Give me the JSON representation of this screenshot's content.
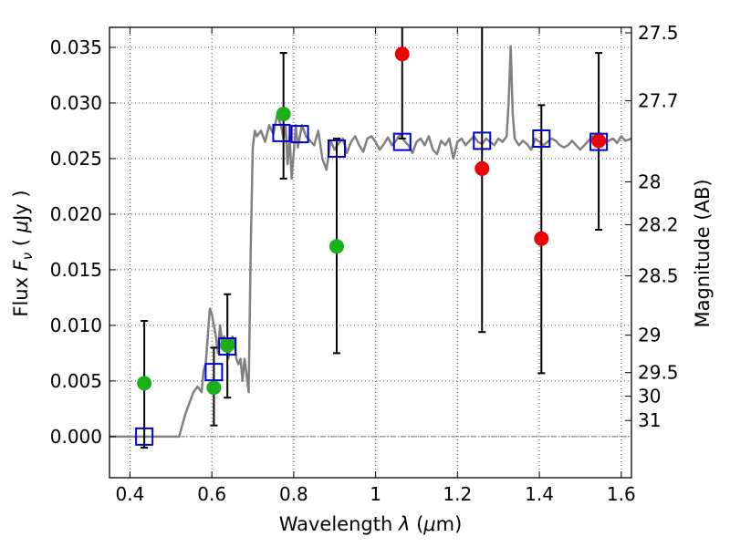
{
  "chart_data": {
    "type": "scatter",
    "title": "",
    "xlabel": "Wavelength  λ (μm)",
    "ylabel": "Flux  Fν  ( μJy )",
    "ylabel_parts": {
      "pre": "Flux ",
      "f": "F",
      "sub": "ν",
      "post": "  ( ",
      "mu": "μ",
      "unit": "Jy )"
    },
    "xlabel_parts": {
      "pre": "Wavelength  ",
      "lambda": "λ",
      "mid": " (",
      "mu": "μ",
      "post": "m)"
    },
    "y2label": "Magnitude (AB)",
    "xlim": [
      0.35,
      1.625
    ],
    "ylim": [
      -0.0037,
      0.0368
    ],
    "grid": true,
    "colors": {
      "spectrum": "#808080",
      "green_points": "#1ab01a",
      "red_points": "#ee0000",
      "model_boxes": "#0000cc",
      "errorbars": "#000000",
      "zero_line": "#777777"
    },
    "x_ticks": [
      {
        "value": 0.4,
        "label": "0.4"
      },
      {
        "value": 0.6,
        "label": "0.6"
      },
      {
        "value": 0.8,
        "label": "0.8"
      },
      {
        "value": 1.0,
        "label": "1"
      },
      {
        "value": 1.2,
        "label": "1.2"
      },
      {
        "value": 1.4,
        "label": "1.4"
      },
      {
        "value": 1.6,
        "label": "1.6"
      }
    ],
    "y_ticks": [
      {
        "value": 0.0,
        "label": "0.000"
      },
      {
        "value": 0.005,
        "label": "0.005"
      },
      {
        "value": 0.01,
        "label": "0.010"
      },
      {
        "value": 0.015,
        "label": "0.015"
      },
      {
        "value": 0.02,
        "label": "0.020"
      },
      {
        "value": 0.025,
        "label": "0.025"
      },
      {
        "value": 0.03,
        "label": "0.030"
      },
      {
        "value": 0.035,
        "label": "0.035"
      }
    ],
    "y2_ticks": [
      {
        "value": 27.5,
        "label": "27.5"
      },
      {
        "value": 27.7,
        "label": "27.7"
      },
      {
        "value": 28.0,
        "label": "28"
      },
      {
        "value": 28.2,
        "label": "28.2"
      },
      {
        "value": 28.5,
        "label": "28.5"
      },
      {
        "value": 29.0,
        "label": "29"
      },
      {
        "value": 29.5,
        "label": "29.5"
      },
      {
        "value": 30.0,
        "label": "30"
      },
      {
        "value": 31.0,
        "label": "31"
      }
    ],
    "series": [
      {
        "kind": "spectrum",
        "x": [
          0.35,
          0.42,
          0.52,
          0.535,
          0.545,
          0.555,
          0.565,
          0.575,
          0.58,
          0.585,
          0.59,
          0.595,
          0.6,
          0.605,
          0.61,
          0.615,
          0.62,
          0.625,
          0.63,
          0.635,
          0.64,
          0.645,
          0.65,
          0.655,
          0.66,
          0.665,
          0.67,
          0.675,
          0.68,
          0.685,
          0.69,
          0.695,
          0.7,
          0.705,
          0.71,
          0.72,
          0.73,
          0.74,
          0.75,
          0.76,
          0.77,
          0.775,
          0.78,
          0.785,
          0.79,
          0.795,
          0.8,
          0.805,
          0.81,
          0.815,
          0.82,
          0.83,
          0.84,
          0.85,
          0.86,
          0.87,
          0.88,
          0.89,
          0.9,
          0.91,
          0.92,
          0.93,
          0.94,
          0.95,
          0.96,
          0.97,
          0.98,
          0.99,
          1.0,
          1.01,
          1.02,
          1.03,
          1.04,
          1.05,
          1.06,
          1.07,
          1.08,
          1.09,
          1.1,
          1.11,
          1.12,
          1.13,
          1.14,
          1.15,
          1.16,
          1.17,
          1.18,
          1.19,
          1.2,
          1.21,
          1.22,
          1.23,
          1.24,
          1.25,
          1.26,
          1.27,
          1.28,
          1.29,
          1.3,
          1.31,
          1.32,
          1.325,
          1.33,
          1.335,
          1.34,
          1.35,
          1.36,
          1.37,
          1.38,
          1.39,
          1.4,
          1.41,
          1.42,
          1.43,
          1.44,
          1.45,
          1.46,
          1.47,
          1.48,
          1.49,
          1.5,
          1.51,
          1.52,
          1.53,
          1.54,
          1.55,
          1.56,
          1.57,
          1.58,
          1.59,
          1.6,
          1.61,
          1.625
        ],
        "y": [
          0.0,
          0.0,
          0.0,
          0.002,
          0.003,
          0.004,
          0.0045,
          0.004,
          0.006,
          0.0065,
          0.009,
          0.0115,
          0.011,
          0.01,
          0.009,
          0.0075,
          0.01,
          0.0085,
          0.009,
          0.008,
          0.007,
          0.008,
          0.009,
          0.0085,
          0.007,
          0.0065,
          0.007,
          0.005,
          0.007,
          0.0055,
          0.004,
          0.017,
          0.026,
          0.0275,
          0.027,
          0.0275,
          0.0265,
          0.028,
          0.0272,
          0.029,
          0.0278,
          0.0268,
          0.028,
          0.0245,
          0.027,
          0.0232,
          0.0255,
          0.028,
          0.026,
          0.027,
          0.028,
          0.027,
          0.0266,
          0.0262,
          0.0275,
          0.025,
          0.024,
          0.0266,
          0.0258,
          0.0264,
          0.0268,
          0.0255,
          0.0265,
          0.027,
          0.0262,
          0.0256,
          0.0268,
          0.027,
          0.0265,
          0.0258,
          0.0263,
          0.0269,
          0.0262,
          0.0266,
          0.0272,
          0.0266,
          0.0262,
          0.0255,
          0.0265,
          0.0268,
          0.0262,
          0.027,
          0.0258,
          0.0254,
          0.0266,
          0.0262,
          0.0268,
          0.025,
          0.0265,
          0.0268,
          0.0262,
          0.0266,
          0.027,
          0.0265,
          0.0263,
          0.0268,
          0.0265,
          0.0262,
          0.0268,
          0.0265,
          0.027,
          0.03,
          0.0351,
          0.029,
          0.0268,
          0.0262,
          0.0266,
          0.0263,
          0.0258,
          0.0268,
          0.0265,
          0.0262,
          0.0265,
          0.0268,
          0.0266,
          0.0262,
          0.026,
          0.0262,
          0.0266,
          0.0262,
          0.0258,
          0.0262,
          0.0266,
          0.027,
          0.0266,
          0.0268,
          0.0264,
          0.0266,
          0.0268,
          0.0264,
          0.027,
          0.0266,
          0.0268
        ]
      },
      {
        "kind": "errorbar",
        "x": [
          0.435,
          0.605,
          0.638,
          0.775,
          0.905,
          1.065,
          1.26,
          1.405,
          1.545
        ],
        "ylow": [
          -0.001,
          0.001,
          0.0035,
          0.0232,
          0.0075,
          0.0268,
          0.0094,
          0.0057,
          0.0186
        ],
        "yhigh": [
          0.0104,
          0.008,
          0.0128,
          0.0345,
          0.0268,
          0.0368,
          0.0368,
          0.0298,
          0.0345
        ]
      },
      {
        "kind": "green_points",
        "x": [
          0.435,
          0.605,
          0.638,
          0.775,
          0.905
        ],
        "y": [
          0.0048,
          0.0044,
          0.0082,
          0.029,
          0.0171
        ]
      },
      {
        "kind": "red_points",
        "x": [
          1.065,
          1.26,
          1.405,
          1.545
        ],
        "y": [
          0.0344,
          0.0241,
          0.0178,
          0.0266
        ]
      },
      {
        "kind": "model_boxes",
        "x": [
          0.435,
          0.605,
          0.638,
          0.77,
          0.815,
          0.905,
          1.065,
          1.26,
          1.405,
          1.545
        ],
        "y": [
          0.0,
          0.0058,
          0.0081,
          0.0273,
          0.0272,
          0.0259,
          0.0265,
          0.0266,
          0.0268,
          0.0265
        ]
      }
    ]
  }
}
